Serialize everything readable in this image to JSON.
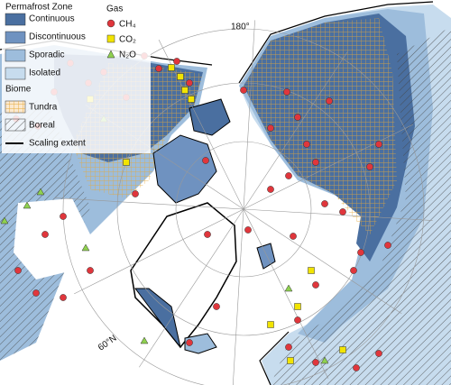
{
  "legend": {
    "permafrost_zone": {
      "title": "Permafrost Zone",
      "items": [
        "Continuous",
        "Discontinuous",
        "Sporadic",
        "Isolated"
      ]
    },
    "biome": {
      "title": "Biome",
      "items": [
        "Tundra",
        "Boreal"
      ]
    },
    "scaling_extent": "Scaling extent",
    "gas": {
      "title": "Gas",
      "items": [
        "CH₄",
        "CO₂",
        "N₂O"
      ]
    }
  },
  "map": {
    "labels": [
      "180°",
      "60°N"
    ]
  }
}
